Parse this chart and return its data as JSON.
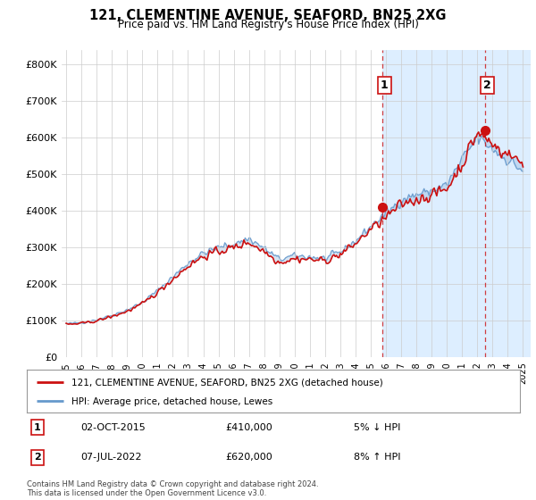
{
  "title": "121, CLEMENTINE AVENUE, SEAFORD, BN25 2XG",
  "subtitle": "Price paid vs. HM Land Registry's House Price Index (HPI)",
  "ytick_values": [
    0,
    100000,
    200000,
    300000,
    400000,
    500000,
    600000,
    700000,
    800000
  ],
  "ylim": [
    0,
    840000
  ],
  "legend_line1": "121, CLEMENTINE AVENUE, SEAFORD, BN25 2XG (detached house)",
  "legend_line2": "HPI: Average price, detached house, Lewes",
  "transaction1_date": "02-OCT-2015",
  "transaction1_price": "£410,000",
  "transaction1_pct": "5% ↓ HPI",
  "transaction2_date": "07-JUL-2022",
  "transaction2_price": "£620,000",
  "transaction2_pct": "8% ↑ HPI",
  "footer": "Contains HM Land Registry data © Crown copyright and database right 2024.\nThis data is licensed under the Open Government Licence v3.0.",
  "hpi_color": "#6699cc",
  "hpi_fill_color": "#ddeeff",
  "price_color": "#cc1111",
  "vline_color": "#cc1111",
  "grid_color": "#cccccc",
  "transaction1_x": 2015.75,
  "transaction1_y": 410000,
  "transaction2_x": 2022.5,
  "transaction2_y": 620000,
  "xlim_left": 1994.7,
  "xlim_right": 2025.5
}
